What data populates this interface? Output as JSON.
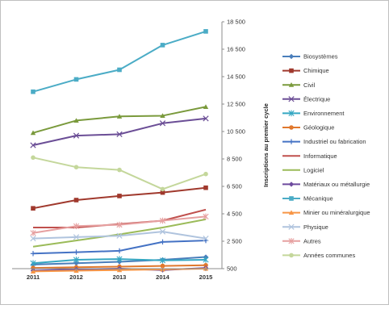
{
  "chart_data": {
    "type": "line",
    "categories": [
      "2011",
      "2012",
      "2013",
      "2014",
      "2015"
    ],
    "ylabel": "Inscriptions au premier cycle",
    "y_ticks": [
      "500",
      "2 500",
      "4 500",
      "6 500",
      "8 500",
      "10 500",
      "12 500",
      "14 500",
      "16 500",
      "18 500"
    ],
    "ylim": [
      500,
      18500
    ],
    "y_axis_position": "right",
    "grid": false,
    "legend_position": "right",
    "series": [
      {
        "name": "Biosystèmes",
        "color": "#4a7ebb",
        "marker": "diamond",
        "values": [
          800,
          900,
          1000,
          1150,
          1350
        ]
      },
      {
        "name": "Chimique",
        "color": "#a0392d",
        "marker": "square",
        "values": [
          4900,
          5500,
          5800,
          6050,
          6400
        ]
      },
      {
        "name": "Civil",
        "color": "#7a9a3c",
        "marker": "triangle",
        "values": [
          10400,
          11300,
          11600,
          11650,
          12300
        ]
      },
      {
        "name": "Électrique",
        "color": "#6b4e96",
        "marker": "x",
        "values": [
          9500,
          10200,
          10300,
          11100,
          11450
        ]
      },
      {
        "name": "Environnement",
        "color": "#35a7c2",
        "marker": "star",
        "values": [
          900,
          1150,
          1200,
          1100,
          1150
        ]
      },
      {
        "name": "Géologique",
        "color": "#e0782d",
        "marker": "circle",
        "values": [
          550,
          600,
          650,
          700,
          750
        ]
      },
      {
        "name": "Industriel ou fabrication",
        "color": "#4472c4",
        "marker": "plus",
        "values": [
          1600,
          1700,
          1800,
          2450,
          2550
        ]
      },
      {
        "name": "Informatique",
        "color": "#c0504d",
        "marker": "none",
        "values": [
          3500,
          3500,
          3750,
          4000,
          4800
        ]
      },
      {
        "name": "Logiciel",
        "color": "#9bbb59",
        "marker": "none",
        "values": [
          2100,
          2550,
          3000,
          3500,
          4100
        ]
      },
      {
        "name": "Matériaux ou métallurgie",
        "color": "#6e4b9e",
        "marker": "diamond",
        "values": [
          350,
          450,
          500,
          400,
          550
        ]
      },
      {
        "name": "Mécanique",
        "color": "#4bacc6",
        "marker": "square",
        "values": [
          13400,
          14300,
          15000,
          16800,
          17800
        ]
      },
      {
        "name": "Minier ou minéralurgique",
        "color": "#f79646",
        "marker": "triangle",
        "values": [
          300,
          350,
          400,
          450,
          500
        ]
      },
      {
        "name": "Physique",
        "color": "#b0c4de",
        "marker": "x",
        "values": [
          2700,
          2800,
          2900,
          3200,
          2700
        ]
      },
      {
        "name": "Autres",
        "color": "#e6a0a0",
        "marker": "star",
        "values": [
          3100,
          3600,
          3700,
          4000,
          4300
        ]
      },
      {
        "name": "Années communes",
        "color": "#c4d79b",
        "marker": "circle",
        "values": [
          8600,
          7900,
          7700,
          6300,
          7400
        ]
      }
    ]
  }
}
